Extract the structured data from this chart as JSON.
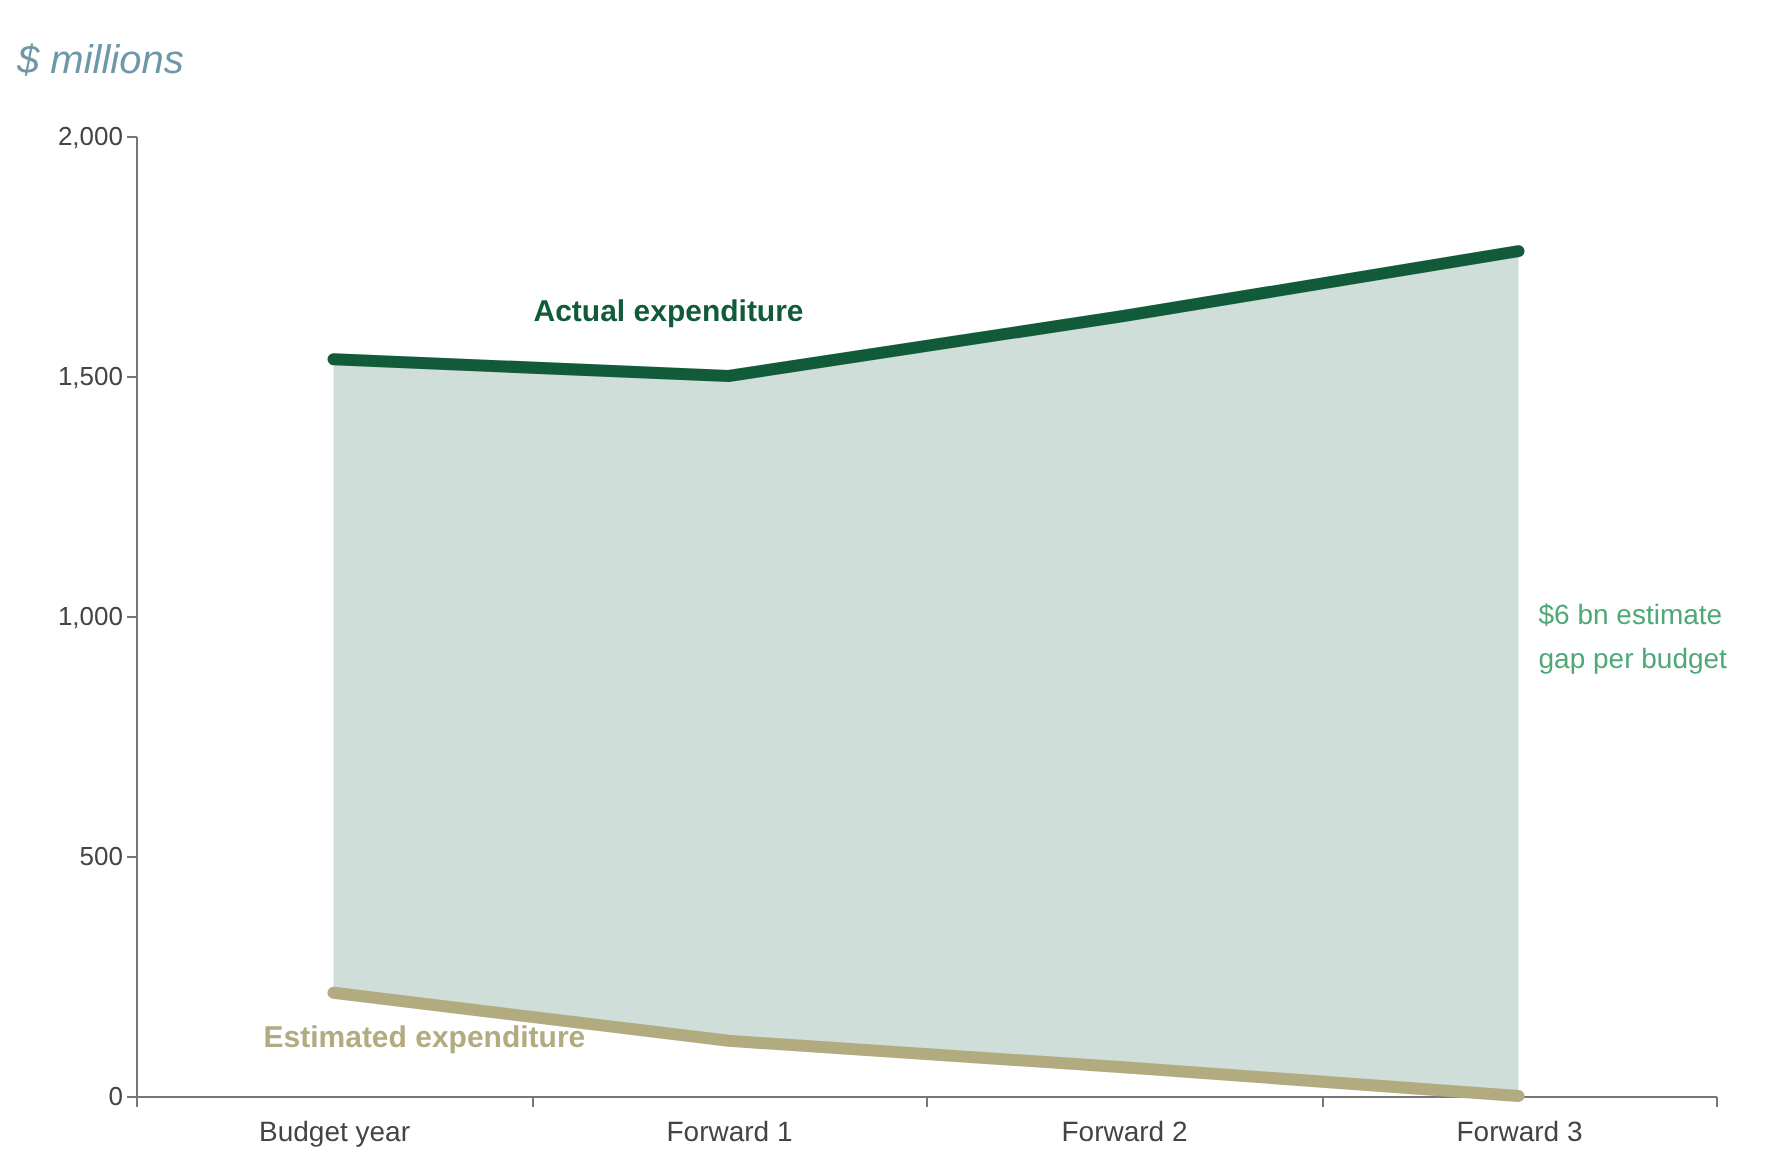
{
  "chart_data": {
    "type": "line",
    "ylabel": "$ millions",
    "categories": [
      "Budget year",
      "Forward 1",
      "Forward 2",
      "Forward 3"
    ],
    "series": [
      {
        "name": "Actual expenditure",
        "color": "#115b3b",
        "values": [
          1535,
          1500,
          1625,
          1760
        ],
        "lower": [
          215,
          115,
          60,
          0
        ],
        "upper": [
          1535,
          1500,
          1625,
          1760
        ]
      },
      {
        "name": "Estimated expenditure",
        "color": "#b2ab80",
        "values": [
          215,
          115,
          60,
          0
        ]
      }
    ],
    "annotations": [
      "$6 bn estimate gap per budget"
    ],
    "ylim": [
      0,
      2000
    ],
    "yticks": [
      0,
      500,
      {
        "value": 1000,
        "label": "1,000"
      },
      {
        "value": 1500,
        "label": "1,500"
      },
      {
        "value": 2000,
        "label": "2,000"
      }
    ]
  }
}
